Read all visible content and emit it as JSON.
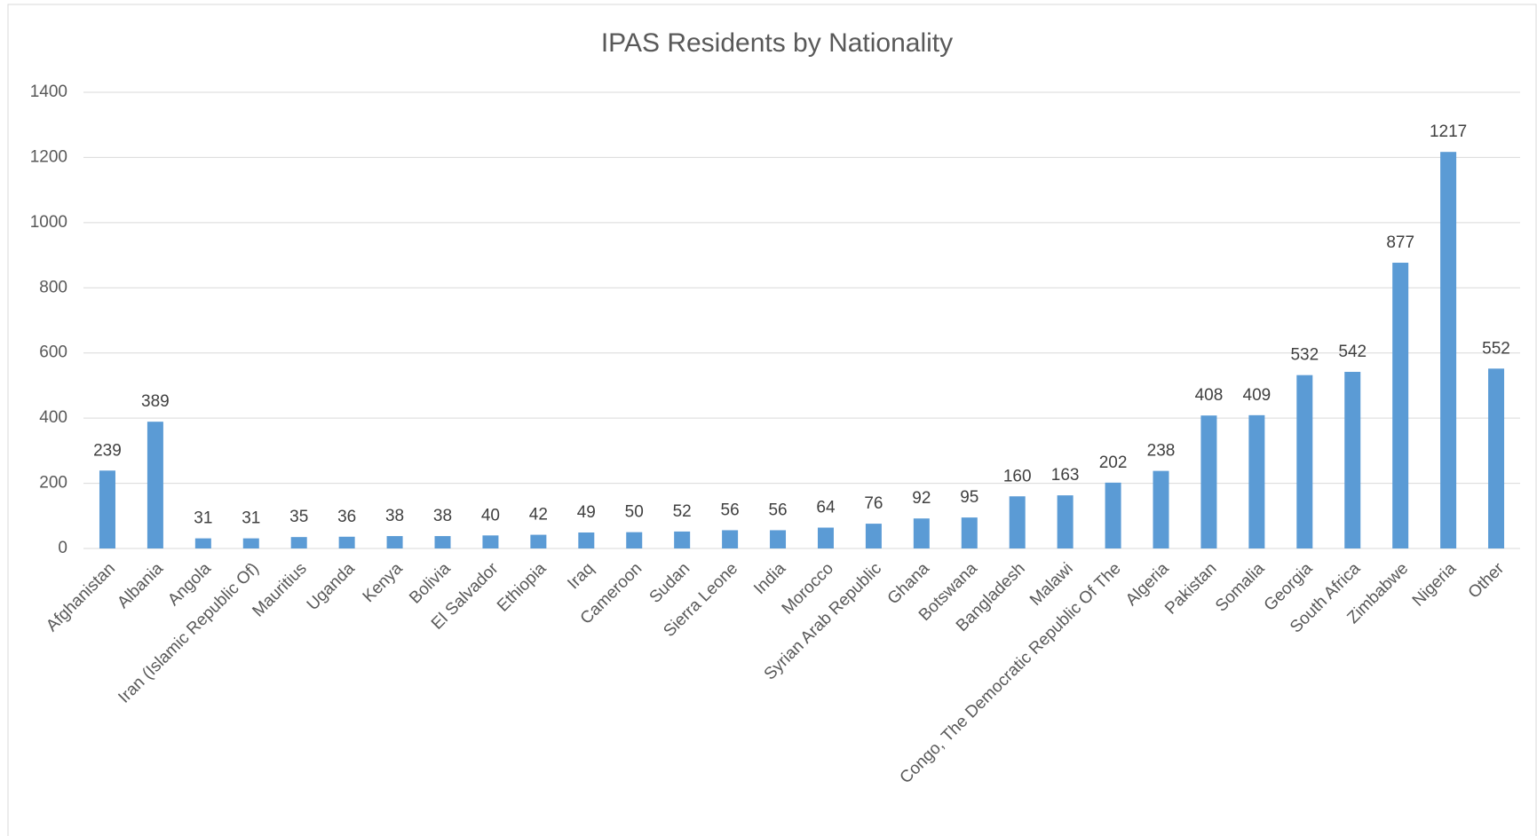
{
  "chart_data": {
    "type": "bar",
    "title": "IPAS Residents by Nationality",
    "categories": [
      "Afghanistan",
      "Albania",
      "Angola",
      "Iran (Islamic Republic Of)",
      "Mauritius",
      "Uganda",
      "Kenya",
      "Bolivia",
      "El Salvador",
      "Ethiopia",
      "Iraq",
      "Cameroon",
      "Sudan",
      "Sierra Leone",
      "India",
      "Morocco",
      "Syrian Arab Republic",
      "Ghana",
      "Botswana",
      "Bangladesh",
      "Malawi",
      "Congo, The Democratic Republic Of The",
      "Algeria",
      "Pakistan",
      "Somalia",
      "Georgia",
      "South Africa",
      "Zimbabwe",
      "Nigeria",
      "Other"
    ],
    "values": [
      239,
      389,
      31,
      31,
      35,
      36,
      38,
      38,
      40,
      42,
      49,
      50,
      52,
      56,
      56,
      64,
      76,
      92,
      95,
      160,
      163,
      202,
      238,
      408,
      409,
      532,
      542,
      877,
      1217,
      552
    ],
    "color": "#5b9bd5",
    "ylim": [
      0,
      1400
    ],
    "yticks": [
      0,
      200,
      400,
      600,
      800,
      1000,
      1200,
      1400
    ],
    "grid": true
  }
}
